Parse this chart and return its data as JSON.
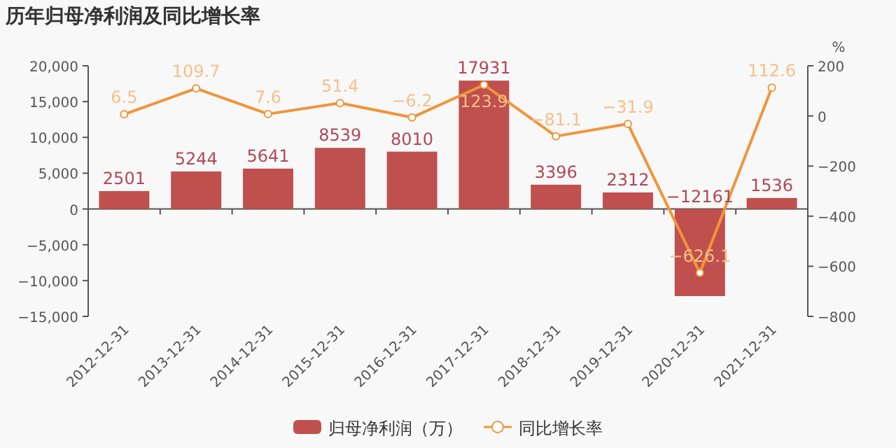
{
  "chart_data": {
    "type": "bar",
    "title": "历年归母净利润及同比增长率",
    "categories": [
      "2012-12-31",
      "2013-12-31",
      "2014-12-31",
      "2015-12-31",
      "2016-12-31",
      "2017-12-31",
      "2018-12-31",
      "2019-12-31",
      "2020-12-31",
      "2021-12-31"
    ],
    "series": [
      {
        "name": "归母净利润（万）",
        "color": "#c0504d",
        "values": [
          2501,
          5244,
          5641,
          8539,
          8010,
          17931,
          3396,
          2312,
          -12161,
          1536
        ]
      },
      {
        "name": "同比增长率",
        "type": "line",
        "axis": "y2",
        "color": "#f0953a",
        "marker": "circle",
        "values": [
          6.5,
          109.7,
          7.6,
          51.4,
          -6.2,
          123.9,
          -81.1,
          -31.9,
          -626.1,
          112.6
        ]
      }
    ],
    "ylim": [
      -15000,
      20000
    ],
    "yticks": [
      {
        "value": -15000,
        "label": "−15,000"
      },
      {
        "value": -10000,
        "label": "−10,000"
      },
      {
        "value": -5000,
        "label": "−5,000"
      },
      0,
      {
        "value": 5000,
        "label": "5,000"
      },
      {
        "value": 10000,
        "label": "10,000"
      },
      {
        "value": 15000,
        "label": "15,000"
      },
      {
        "value": 20000,
        "label": "20,000"
      }
    ],
    "y2lim": [
      -800,
      200
    ],
    "y2ticks": [
      {
        "value": -800,
        "label": "−800"
      },
      {
        "value": -600,
        "label": "−600"
      },
      {
        "value": -400,
        "label": "−400"
      },
      {
        "value": -200,
        "label": "−200"
      },
      0,
      200
    ],
    "y2label": "%",
    "data_labels": true,
    "legend": "bottom"
  }
}
